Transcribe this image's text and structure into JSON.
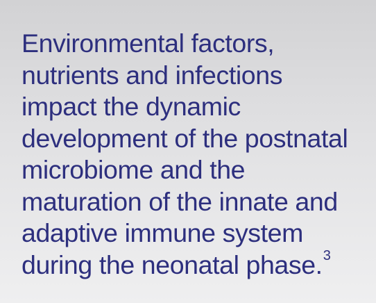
{
  "quote": {
    "lines": [
      "Environmental factors,",
      "nutrients and infections",
      "impact the dynamic",
      "development of the postnatal",
      "microbiome and the",
      "maturation of the innate and",
      "adaptive immune system",
      "during the neonatal phase."
    ],
    "footnote_ref": "3"
  },
  "colors": {
    "text": "#2d2f7e",
    "background_top": "#d2d2d4",
    "background_bottom": "#efeff0"
  }
}
